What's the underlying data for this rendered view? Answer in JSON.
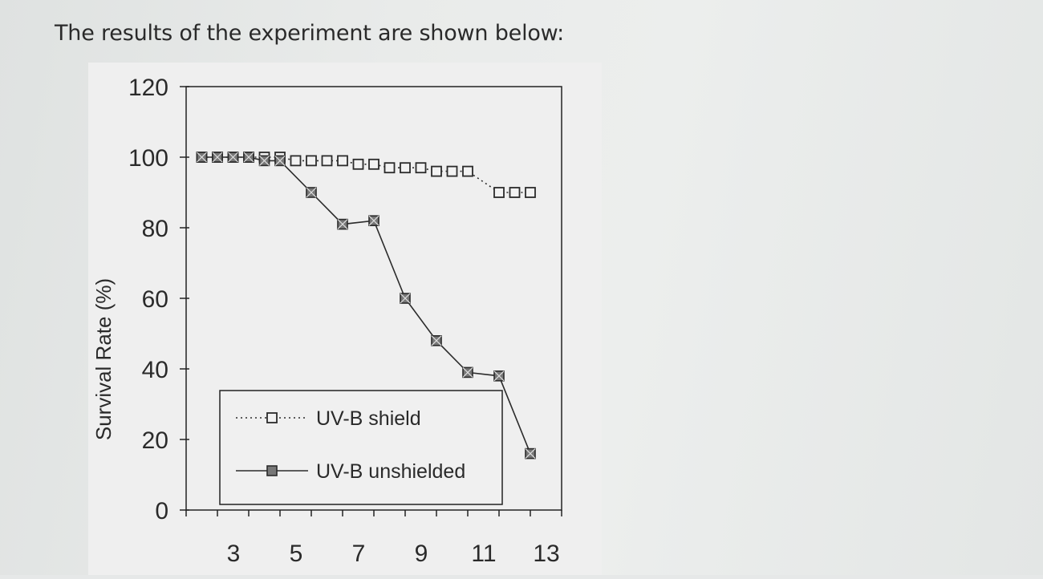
{
  "page": {
    "heading": "The results of the experiment are shown below:"
  },
  "chart_data": {
    "type": "line",
    "title": "",
    "xlabel": "",
    "ylabel": "Survival Rate (%)",
    "xlim": [
      2,
      14
    ],
    "ylim": [
      0,
      120
    ],
    "x_ticks": [
      3,
      5,
      7,
      9,
      11,
      13
    ],
    "y_ticks": [
      0,
      20,
      40,
      60,
      80,
      100,
      120
    ],
    "grid": false,
    "legend_position": "bottom-left",
    "series": [
      {
        "name": "UV-B shield",
        "style": "dotted",
        "marker": "open-square",
        "color": "#2b2b2b",
        "points": [
          [
            2.5,
            100
          ],
          [
            3,
            100
          ],
          [
            3.5,
            100
          ],
          [
            4,
            100
          ],
          [
            4.5,
            100
          ],
          [
            5,
            100
          ],
          [
            5.5,
            99
          ],
          [
            6,
            99
          ],
          [
            6.5,
            99
          ],
          [
            7,
            99
          ],
          [
            7.5,
            98
          ],
          [
            8,
            98
          ],
          [
            8.5,
            97
          ],
          [
            9,
            97
          ],
          [
            9.5,
            97
          ],
          [
            10,
            96
          ],
          [
            10.5,
            96
          ],
          [
            11,
            96
          ],
          [
            12,
            90
          ],
          [
            12.5,
            90
          ],
          [
            13,
            90
          ]
        ]
      },
      {
        "name": "UV-B unshielded",
        "style": "solid",
        "marker": "hatched-square",
        "color": "#2b2b2b",
        "points": [
          [
            2.5,
            100
          ],
          [
            3,
            100
          ],
          [
            3.5,
            100
          ],
          [
            4,
            100
          ],
          [
            4.5,
            99
          ],
          [
            5,
            99
          ],
          [
            6,
            90
          ],
          [
            7,
            81
          ],
          [
            8,
            82
          ],
          [
            9,
            60
          ],
          [
            10,
            48
          ],
          [
            11,
            39
          ],
          [
            12,
            38
          ],
          [
            13,
            16
          ]
        ]
      }
    ]
  }
}
